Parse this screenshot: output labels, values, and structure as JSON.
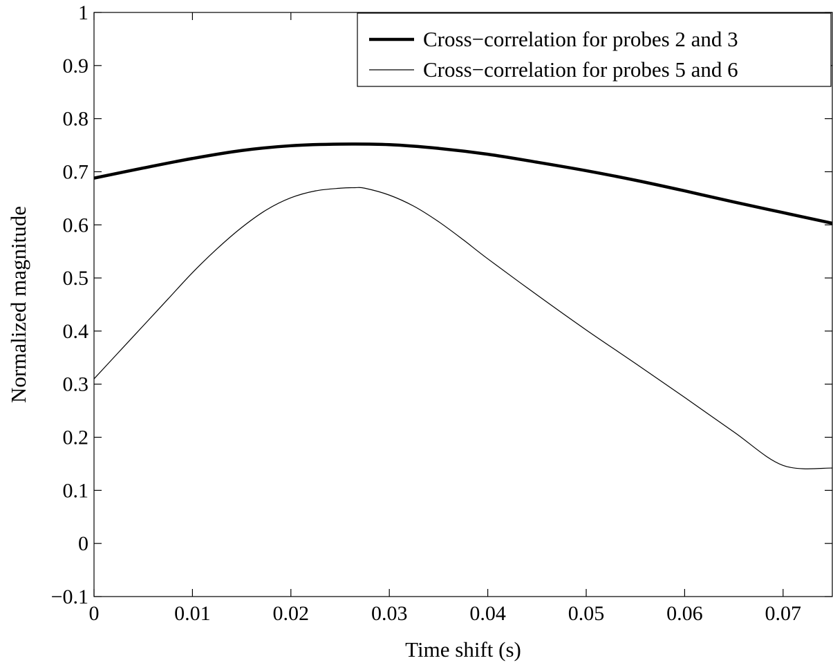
{
  "chart_data": {
    "type": "line",
    "title": "",
    "xlabel": "Time shift (s)",
    "ylabel": "Normalized magnitude",
    "xlim": [
      0,
      0.075
    ],
    "ylim": [
      -0.1,
      1
    ],
    "xticks": [
      0,
      0.01,
      0.02,
      0.03,
      0.04,
      0.05,
      0.06,
      0.07
    ],
    "xtick_labels": [
      "0",
      "0.01",
      "0.02",
      "0.03",
      "0.04",
      "0.05",
      "0.06",
      "0.07"
    ],
    "yticks": [
      -0.1,
      0,
      0.1,
      0.2,
      0.3,
      0.4,
      0.5,
      0.6,
      0.7,
      0.8,
      0.9,
      1
    ],
    "ytick_labels": [
      "−0.1",
      "0",
      "0.1",
      "0.2",
      "0.3",
      "0.4",
      "0.5",
      "0.6",
      "0.7",
      "0.8",
      "0.9",
      "1"
    ],
    "grid": false,
    "legend_position": "top-right",
    "series": [
      {
        "name": "Cross−correlation for probes 2 and 3",
        "color": "#000000",
        "style": "thick",
        "x": [
          0,
          0.005,
          0.01,
          0.015,
          0.02,
          0.025,
          0.03,
          0.035,
          0.04,
          0.045,
          0.05,
          0.055,
          0.06,
          0.065,
          0.07,
          0.075
        ],
        "y": [
          0.688,
          0.707,
          0.725,
          0.74,
          0.749,
          0.752,
          0.751,
          0.744,
          0.733,
          0.718,
          0.702,
          0.684,
          0.664,
          0.643,
          0.623,
          0.603
        ]
      },
      {
        "name": "Cross−correlation for probes 5 and 6",
        "color": "#000000",
        "style": "thin",
        "x": [
          0,
          0.0025,
          0.005,
          0.0075,
          0.01,
          0.0125,
          0.015,
          0.0175,
          0.02,
          0.0225,
          0.025,
          0.0265,
          0.0275,
          0.03,
          0.0325,
          0.035,
          0.0375,
          0.04,
          0.045,
          0.05,
          0.055,
          0.06,
          0.065,
          0.07,
          0.075
        ],
        "y": [
          0.31,
          0.36,
          0.41,
          0.46,
          0.51,
          0.555,
          0.595,
          0.628,
          0.651,
          0.664,
          0.669,
          0.67,
          0.669,
          0.656,
          0.635,
          0.606,
          0.572,
          0.536,
          0.468,
          0.402,
          0.339,
          0.275,
          0.21,
          0.147,
          0.142
        ]
      }
    ]
  }
}
